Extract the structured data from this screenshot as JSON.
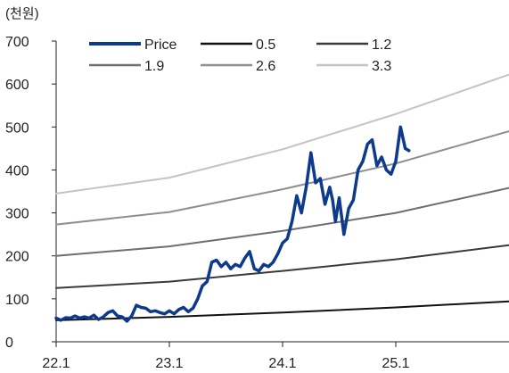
{
  "unit_label": "(천원)",
  "chart_data": {
    "type": "line",
    "title": "",
    "xlabel": "",
    "ylabel": "(천원)",
    "xlim": [
      0,
      48
    ],
    "ylim": [
      0,
      700
    ],
    "yticks": [
      0,
      100,
      200,
      300,
      400,
      500,
      600,
      700
    ],
    "xticks": [
      {
        "value": 0,
        "label": "22.1"
      },
      {
        "value": 12,
        "label": "23.1"
      },
      {
        "value": 24,
        "label": "24.1"
      },
      {
        "value": 36,
        "label": "25.1"
      }
    ],
    "grid": false,
    "legend_position": "top",
    "legend": [
      "Price",
      "0.5",
      "1.2",
      "1.9",
      "2.6",
      "3.3"
    ],
    "series": [
      {
        "name": "Price",
        "color": "#0d3a8c",
        "width": 3.5,
        "x": [
          0,
          0.5,
          1,
          1.5,
          2,
          2.5,
          3,
          3.5,
          4,
          4.5,
          5,
          5.5,
          6,
          6.5,
          7,
          7.5,
          8,
          8.5,
          9,
          9.5,
          10,
          10.5,
          11,
          11.5,
          12,
          12.5,
          13,
          13.5,
          14,
          14.5,
          15,
          15.5,
          16,
          16.5,
          17,
          17.5,
          18,
          18.5,
          19,
          19.5,
          20,
          20.5,
          21,
          21.5,
          22,
          22.5,
          23,
          23.5,
          24,
          24.5,
          25,
          25.5,
          26,
          26.5,
          27,
          27.5,
          28,
          28.5,
          29,
          29.3,
          29.6,
          30,
          30.5,
          31,
          31.5,
          32,
          32.5,
          33,
          33.5,
          34,
          34.5,
          35,
          35.5,
          36,
          36.5,
          37,
          37.4
        ],
        "values": [
          55,
          50,
          56,
          55,
          60,
          55,
          58,
          55,
          62,
          52,
          58,
          68,
          72,
          60,
          58,
          48,
          60,
          85,
          80,
          78,
          70,
          72,
          68,
          65,
          72,
          65,
          75,
          80,
          70,
          78,
          100,
          130,
          140,
          185,
          190,
          175,
          185,
          170,
          180,
          175,
          195,
          210,
          170,
          165,
          180,
          175,
          185,
          205,
          230,
          240,
          280,
          340,
          300,
          360,
          440,
          370,
          380,
          320,
          360,
          330,
          280,
          335,
          250,
          310,
          330,
          400,
          420,
          460,
          470,
          410,
          430,
          400,
          390,
          420,
          500,
          450,
          445
        ]
      },
      {
        "name": "0.5",
        "color": "#111111",
        "width": 2,
        "x": [
          0,
          12,
          24,
          36,
          48
        ],
        "values": [
          50,
          58,
          68,
          80,
          94
        ]
      },
      {
        "name": "1.2",
        "color": "#3a3a3a",
        "width": 2,
        "x": [
          0,
          12,
          24,
          36,
          48
        ],
        "values": [
          125,
          140,
          165,
          192,
          225
        ]
      },
      {
        "name": "1.9",
        "color": "#6e6e6e",
        "width": 2,
        "x": [
          0,
          12,
          24,
          36,
          48
        ],
        "values": [
          200,
          222,
          258,
          300,
          358
        ]
      },
      {
        "name": "2.6",
        "color": "#8e8e8e",
        "width": 2,
        "x": [
          0,
          12,
          24,
          36,
          48
        ],
        "values": [
          273,
          302,
          355,
          415,
          490
        ]
      },
      {
        "name": "3.3",
        "color": "#c4c4c4",
        "width": 2,
        "x": [
          0,
          12,
          24,
          36,
          48
        ],
        "values": [
          345,
          382,
          448,
          530,
          622
        ]
      }
    ]
  }
}
